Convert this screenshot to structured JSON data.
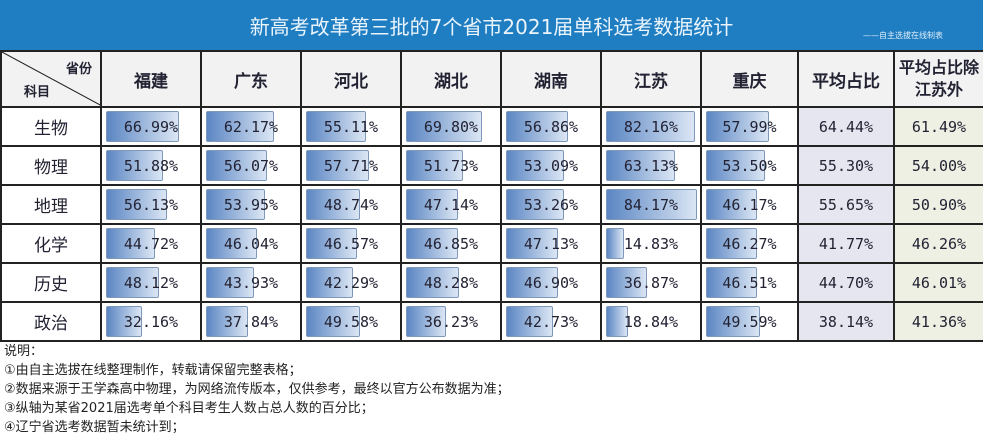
{
  "title": "新高考改革第三批的7个省市2021届单科选考数据统计",
  "credit": "——自主选拔在线制表",
  "corner": {
    "top_right": "省份",
    "bottom_left": "科目"
  },
  "columns": [
    "福建",
    "广东",
    "河北",
    "湖北",
    "湖南",
    "江苏",
    "重庆",
    "平均占比",
    "平均占比除江苏外"
  ],
  "rows": [
    {
      "subject": "生物",
      "values": [
        "66.99%",
        "62.17%",
        "55.11%",
        "69.80%",
        "56.86%",
        "82.16%",
        "57.99%"
      ],
      "avg": "64.44%",
      "avg_excl": "61.49%"
    },
    {
      "subject": "物理",
      "values": [
        "51.88%",
        "56.07%",
        "57.71%",
        "51.73%",
        "53.09%",
        "63.13%",
        "53.50%"
      ],
      "avg": "55.30%",
      "avg_excl": "54.00%"
    },
    {
      "subject": "地理",
      "values": [
        "56.13%",
        "53.95%",
        "48.74%",
        "47.14%",
        "53.26%",
        "84.17%",
        "46.17%"
      ],
      "avg": "55.65%",
      "avg_excl": "50.90%"
    },
    {
      "subject": "化学",
      "values": [
        "44.72%",
        "46.04%",
        "46.57%",
        "46.85%",
        "47.13%",
        "14.83%",
        "46.27%"
      ],
      "avg": "41.77%",
      "avg_excl": "46.26%"
    },
    {
      "subject": "历史",
      "values": [
        "48.12%",
        "43.93%",
        "42.29%",
        "48.28%",
        "46.90%",
        "36.87%",
        "46.51%"
      ],
      "avg": "44.70%",
      "avg_excl": "46.01%"
    },
    {
      "subject": "政治",
      "values": [
        "32.16%",
        "37.84%",
        "49.58%",
        "36.23%",
        "42.73%",
        "18.84%",
        "49.59%"
      ],
      "avg": "38.14%",
      "avg_excl": "41.36%"
    }
  ],
  "notes": [
    "说明：",
    "①由自主选拔在线整理制作，转载请保留完整表格；",
    "②数据来源于王学森高中物理，为网络流传版本，仅供参考，最终以官方公布数据为准；",
    "③纵轴为某省2021届选考单个科目考生人数占总人数的百分比；",
    "④辽宁省选考数据暂未统计到；"
  ],
  "colors": {
    "title_bar": "#1f7dc2",
    "bar": "#5b86c3"
  }
}
